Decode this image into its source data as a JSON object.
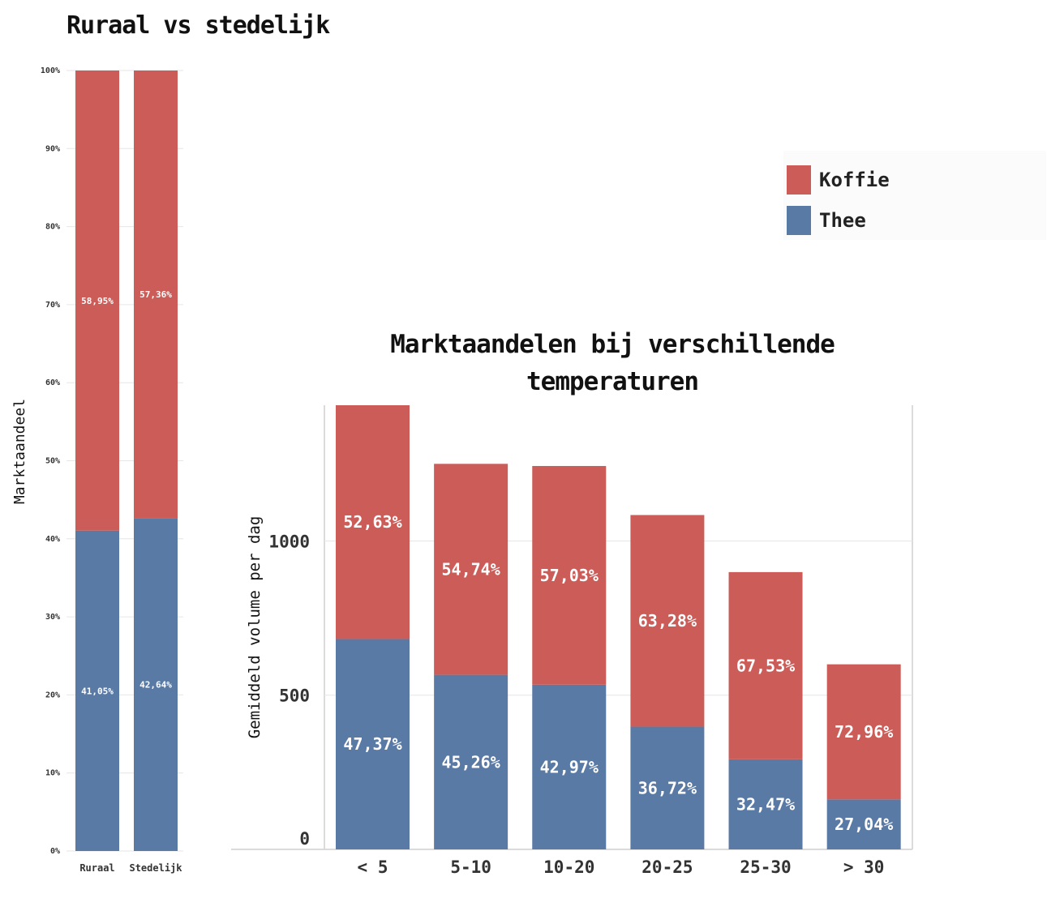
{
  "colors": {
    "koffie": "#cc5c58",
    "thee": "#5a7aa6",
    "grid": "#e6e6e6",
    "axis": "#cfcfcf",
    "text": "#111111"
  },
  "legend": {
    "items": [
      {
        "label": "Koffie",
        "color": "#cc5c58"
      },
      {
        "label": "Thee",
        "color": "#5a7aa6"
      }
    ]
  },
  "chart_data": [
    {
      "type": "bar",
      "stacked": true,
      "title": "Ruraal vs stedelijk",
      "ylabel": "Marktaandeel",
      "xlabel": "",
      "ylim": [
        0,
        100
      ],
      "yticks": [
        "0%",
        "10%",
        "20%",
        "30%",
        "40%",
        "50%",
        "60%",
        "70%",
        "80%",
        "90%",
        "100%"
      ],
      "categories": [
        "Ruraal",
        "Stedelijk"
      ],
      "series": [
        {
          "name": "Thee",
          "values": [
            41.05,
            42.64
          ],
          "labels": [
            "41,05%",
            "42,64%"
          ]
        },
        {
          "name": "Koffie",
          "values": [
            58.95,
            57.36
          ],
          "labels": [
            "58,95%",
            "57,36%"
          ]
        }
      ],
      "grid": true
    },
    {
      "type": "bar",
      "stacked": true,
      "title": "Marktaandelen bij verschillende temperaturen",
      "title_lines": [
        "Marktaandelen bij verschillende",
        "temperaturen"
      ],
      "ylabel": "Gemiddeld volume per dag",
      "xlabel": "",
      "ylim": [
        0,
        1440
      ],
      "yticks": [
        0,
        500,
        1000
      ],
      "categories": [
        "< 5",
        "5-10",
        "10-20",
        "20-25",
        "25-30",
        "> 30"
      ],
      "series": [
        {
          "name": "Thee",
          "values": [
            682,
            566,
            534,
            398,
            292,
            162
          ],
          "labels": [
            "47,37%",
            "45,26%",
            "42,97%",
            "36,72%",
            "32,47%",
            "27,04%"
          ]
        },
        {
          "name": "Koffie",
          "values": [
            758,
            684,
            709,
            686,
            607,
            438
          ],
          "labels": [
            "52,63%",
            "54,74%",
            "57,03%",
            "63,28%",
            "67,53%",
            "72,96%"
          ]
        }
      ],
      "grid": true
    }
  ]
}
